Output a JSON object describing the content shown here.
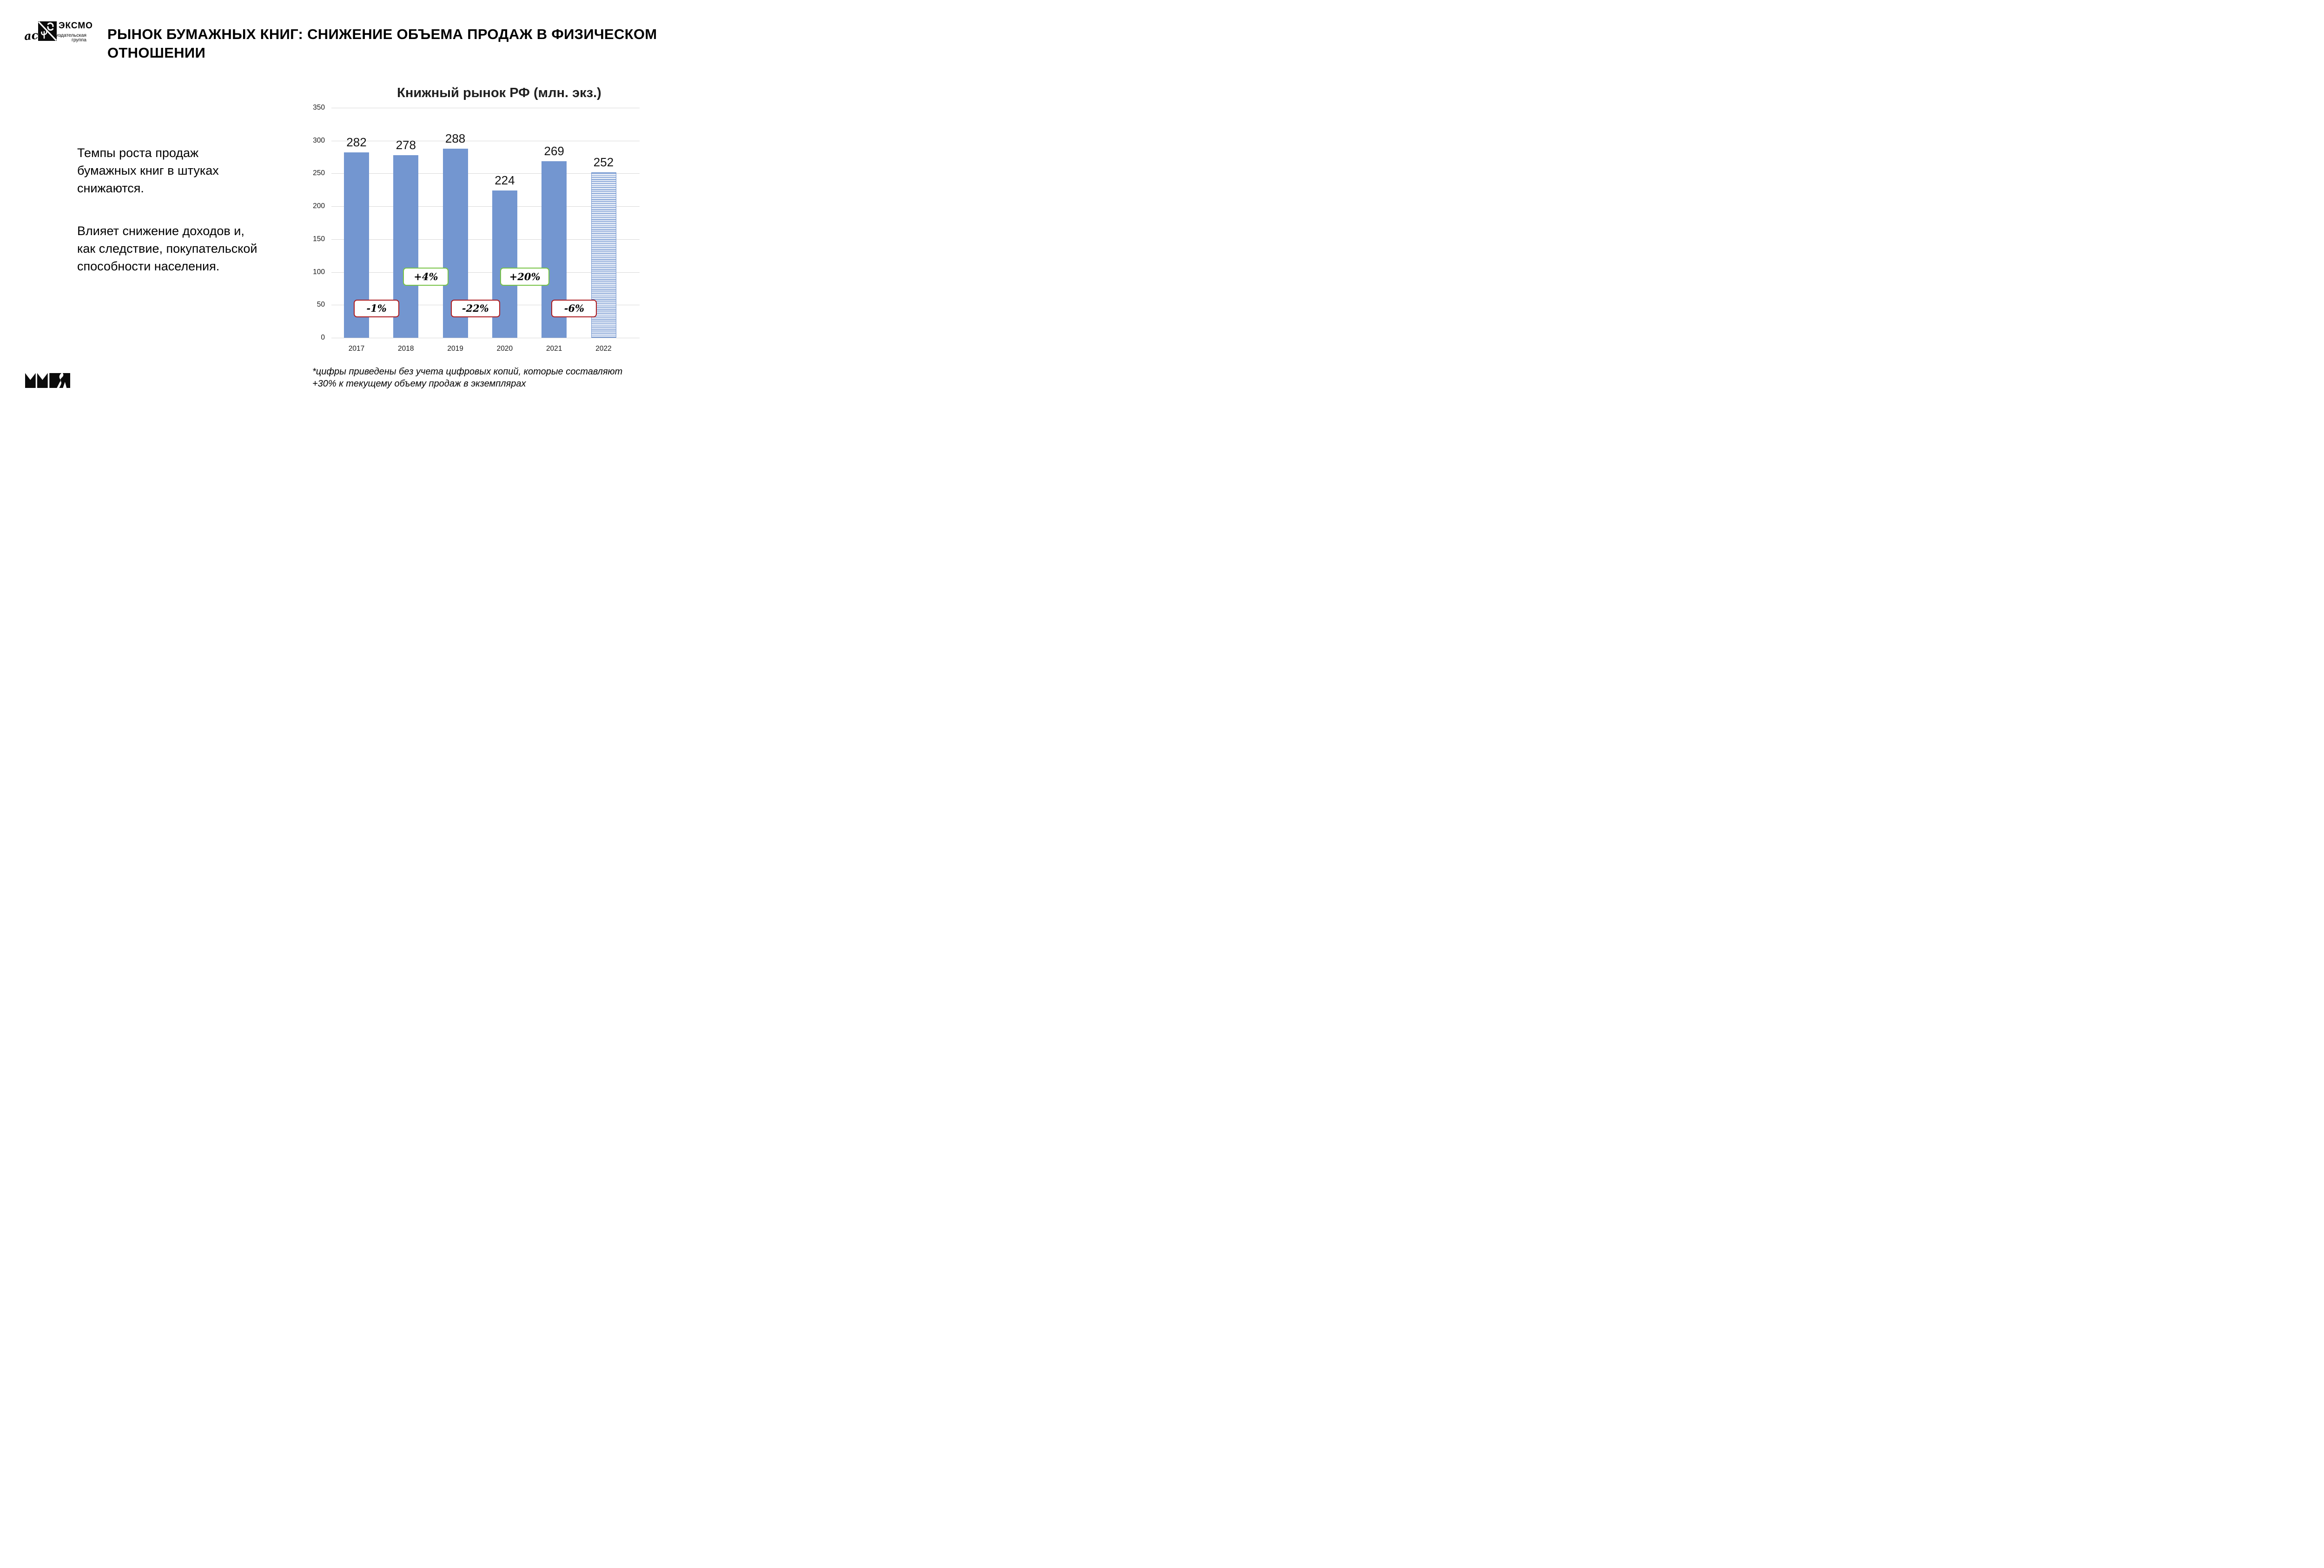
{
  "header": {
    "logo": {
      "ast_text": "ас",
      "eksmo": "ЭКСМО",
      "group": "издательская\nгруппа"
    },
    "title": "РЫНОК БУМАЖНЫХ КНИГ: СНИЖЕНИЕ ОБЪЕМА ПРОДАЖ В ФИЗИЧЕСКОМ\nОТНОШЕНИИ"
  },
  "body": {
    "paragraph1": "Темпы роста продаж\nбумажных книг в штуках\nснижаются.",
    "paragraph2": "Влияет снижение доходов и,\nкак следствие, покупательской\nспособности населения.",
    "footnote": "*цифры приведены без учета цифровых копий, которые составляют\n+30% к текущему объему продаж в экземплярах"
  },
  "chart_data": {
    "type": "bar",
    "title": "Книжный рынок РФ (млн. экз.)",
    "categories": [
      "2017",
      "2018",
      "2019",
      "2020",
      "2021",
      "2022"
    ],
    "values": [
      282,
      278,
      288,
      224,
      269,
      252
    ],
    "xlabel": "",
    "ylabel": "",
    "ylim": [
      0,
      350
    ],
    "ytick_step": 50,
    "grid": true,
    "legend": false,
    "bar_color": "#7396D0",
    "last_bar_hatched": true,
    "annotations": [
      {
        "label": "-1%",
        "trend": "down",
        "between": [
          "2017",
          "2018"
        ]
      },
      {
        "label": "+4%",
        "trend": "up",
        "between": [
          "2018",
          "2019"
        ]
      },
      {
        "label": "-22%",
        "trend": "down",
        "between": [
          "2019",
          "2020"
        ]
      },
      {
        "label": "+20%",
        "trend": "up",
        "between": [
          "2020",
          "2021"
        ]
      },
      {
        "label": "-6%",
        "trend": "down",
        "between": [
          "2021",
          "2022"
        ]
      }
    ],
    "colors": {
      "positive": "#77C345",
      "negative": "#AD1B1F",
      "grid": "#D9D9D9"
    }
  }
}
